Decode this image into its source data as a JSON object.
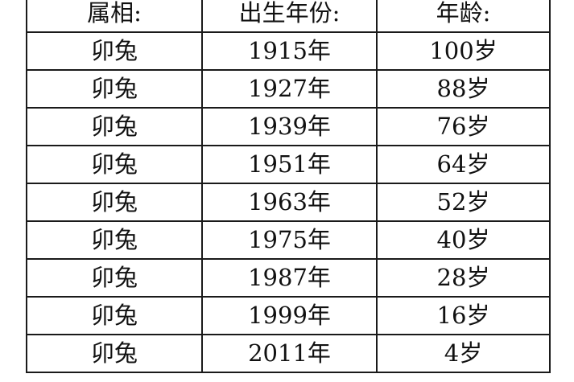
{
  "table": {
    "headers": [
      "属相:",
      "出生年份:",
      "年龄:"
    ],
    "rows": [
      [
        "卯兔",
        "1915年",
        "100岁"
      ],
      [
        "卯兔",
        "1927年",
        "88岁"
      ],
      [
        "卯兔",
        "1939年",
        "76岁"
      ],
      [
        "卯兔",
        "1951年",
        "64岁"
      ],
      [
        "卯兔",
        "1963年",
        "52岁"
      ],
      [
        "卯兔",
        "1975年",
        "40岁"
      ],
      [
        "卯兔",
        "1987年",
        "28岁"
      ],
      [
        "卯兔",
        "1999年",
        "16岁"
      ],
      [
        "卯兔",
        "2011年",
        "4岁"
      ]
    ]
  }
}
